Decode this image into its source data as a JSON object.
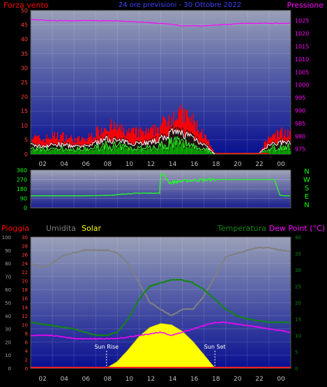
{
  "header": {
    "left_label": "Forza vento",
    "center_label": "24 ore previsioni - 30 Ottobre 2022",
    "right_label": "Pressione"
  },
  "bottom_header": {
    "rain_label": "Pioggia",
    "hum_label": "Umidita",
    "solar_label": "Solar",
    "temp_label": "Temperatura",
    "dew_label": "Dew Point (°C)"
  },
  "x_ticks": [
    "02",
    "04",
    "06",
    "08",
    "10",
    "12",
    "14",
    "16",
    "18",
    "20",
    "22",
    "00"
  ],
  "colors": {
    "wind": "#ff0000",
    "gust": "#ffffff",
    "wind_green": "#00aa00",
    "pressure": "#ff00ff",
    "direction": "#22ff22",
    "humidity": "#808080",
    "temperature": "#118811",
    "dew": "#ff00ff",
    "solar": "#ffff00",
    "compass": "#00ff00"
  },
  "chart_data": [
    {
      "type": "bar",
      "id": "wind-pressure",
      "y_left_ticks": [
        0,
        5,
        10,
        15,
        20,
        25,
        30,
        35,
        40,
        45,
        50
      ],
      "y_right_ticks": [
        975,
        980,
        985,
        990,
        995,
        1000,
        1005,
        1010,
        1015,
        1020,
        1025
      ],
      "ylim_left": [
        0,
        50
      ],
      "ylim_right": [
        973,
        1029
      ],
      "wind_profile": [
        [
          0,
          5
        ],
        [
          1,
          4
        ],
        [
          2,
          5
        ],
        [
          3,
          5
        ],
        [
          4,
          4
        ],
        [
          5,
          4
        ],
        [
          6,
          6
        ],
        [
          7,
          8
        ],
        [
          8,
          7
        ],
        [
          9,
          6
        ],
        [
          10,
          6
        ],
        [
          11,
          6
        ],
        [
          12,
          8
        ],
        [
          13,
          11
        ],
        [
          14,
          11
        ],
        [
          15,
          9
        ],
        [
          16,
          5
        ],
        [
          17,
          0
        ],
        [
          18,
          0
        ],
        [
          19,
          0
        ],
        [
          20,
          0
        ],
        [
          21,
          0
        ],
        [
          22,
          5
        ],
        [
          23,
          6
        ],
        [
          24,
          6
        ]
      ],
      "pressure": [
        [
          0,
          1025.5
        ],
        [
          2,
          1025
        ],
        [
          4,
          1025
        ],
        [
          6,
          1025
        ],
        [
          8,
          1025
        ],
        [
          10,
          1024.5
        ],
        [
          12,
          1024
        ],
        [
          13,
          1023.5
        ],
        [
          14,
          1023
        ],
        [
          16,
          1023
        ],
        [
          18,
          1023.5
        ],
        [
          20,
          1024
        ],
        [
          22,
          1024
        ],
        [
          24,
          1024
        ]
      ]
    },
    {
      "type": "line",
      "id": "wind-direction",
      "y_ticks": [
        0,
        90,
        180,
        270,
        360
      ],
      "ylim": [
        0,
        360
      ],
      "compass": [
        "N",
        "W",
        "S",
        "E",
        "N"
      ],
      "direction": [
        [
          0,
          115
        ],
        [
          2,
          115
        ],
        [
          5,
          115
        ],
        [
          7,
          118
        ],
        [
          8,
          125
        ],
        [
          9,
          135
        ],
        [
          10,
          140
        ],
        [
          11,
          140
        ],
        [
          11.9,
          140
        ],
        [
          12,
          330
        ],
        [
          12.4,
          300
        ],
        [
          12.8,
          240
        ],
        [
          13.5,
          250
        ],
        [
          14.5,
          260
        ],
        [
          15.5,
          265
        ],
        [
          17,
          270
        ],
        [
          19,
          270
        ],
        [
          20,
          270
        ],
        [
          22.5,
          270
        ],
        [
          23,
          120
        ],
        [
          23.4,
          115
        ],
        [
          24,
          115
        ]
      ]
    },
    {
      "type": "line",
      "id": "temp-hum-solar",
      "y_left_ticks": [
        0,
        10,
        20,
        30,
        40,
        50,
        60,
        70,
        80,
        90,
        100
      ],
      "y_rain_ticks": [
        0,
        2,
        4,
        6,
        8,
        10,
        12,
        14,
        16,
        18,
        20,
        22,
        24,
        26,
        28,
        30
      ],
      "y_right_ticks": [
        0,
        5,
        10,
        15,
        20,
        25,
        30,
        35,
        40
      ],
      "ylim_left": [
        0,
        100
      ],
      "ylim_right": [
        0,
        40
      ],
      "series": [
        {
          "name": "Umidita",
          "axis": "left",
          "values": [
            [
              0,
              80
            ],
            [
              1,
              77
            ],
            [
              2,
              80
            ],
            [
              3,
              86
            ],
            [
              5,
              90
            ],
            [
              7,
              90
            ],
            [
              8,
              88
            ],
            [
              9,
              80
            ],
            [
              10,
              65
            ],
            [
              11,
              50
            ],
            [
              12,
              45
            ],
            [
              13,
              40
            ],
            [
              14,
              45
            ],
            [
              15,
              45
            ],
            [
              16,
              55
            ],
            [
              17,
              70
            ],
            [
              18,
              85
            ],
            [
              20,
              90
            ],
            [
              21,
              92
            ],
            [
              22,
              92
            ],
            [
              23,
              90
            ],
            [
              24,
              89
            ]
          ]
        },
        {
          "name": "Temperatura",
          "axis": "right",
          "values": [
            [
              0,
              14
            ],
            [
              2,
              13
            ],
            [
              4,
              12
            ],
            [
              6,
              10
            ],
            [
              7,
              10
            ],
            [
              8,
              11
            ],
            [
              9,
              15
            ],
            [
              10,
              21
            ],
            [
              11,
              25
            ],
            [
              12,
              26
            ],
            [
              13,
              27
            ],
            [
              14,
              27
            ],
            [
              15,
              26
            ],
            [
              16,
              24
            ],
            [
              17,
              21
            ],
            [
              18,
              18
            ],
            [
              19,
              16
            ],
            [
              20,
              15
            ],
            [
              22,
              14
            ],
            [
              24,
              14
            ]
          ]
        },
        {
          "name": "Dew Point",
          "axis": "right",
          "values": [
            [
              0,
              10
            ],
            [
              2,
              10
            ],
            [
              4,
              9
            ],
            [
              6,
              9
            ],
            [
              8,
              9
            ],
            [
              10,
              10
            ],
            [
              12,
              11
            ],
            [
              13,
              10
            ],
            [
              14,
              11
            ],
            [
              15,
              12
            ],
            [
              16,
              13
            ],
            [
              17,
              14
            ],
            [
              18,
              14
            ],
            [
              20,
              13
            ],
            [
              22,
              12
            ],
            [
              24,
              11
            ]
          ]
        },
        {
          "name": "Solar",
          "axis": "left",
          "values": [
            [
              7,
              0
            ],
            [
              8,
              5
            ],
            [
              9,
              14
            ],
            [
              10,
              24
            ],
            [
              11,
              31
            ],
            [
              12,
              34
            ],
            [
              13,
              33
            ],
            [
              14,
              28
            ],
            [
              15,
              20
            ],
            [
              16,
              10
            ],
            [
              17,
              0
            ]
          ]
        },
        {
          "name": "Pioggia",
          "axis": "rain",
          "values": [
            [
              0,
              0
            ],
            [
              24,
              0
            ]
          ]
        }
      ],
      "annotations": [
        {
          "label": "Sun Rise",
          "x": 7
        },
        {
          "label": "Sun Set",
          "x": 17
        }
      ]
    }
  ]
}
